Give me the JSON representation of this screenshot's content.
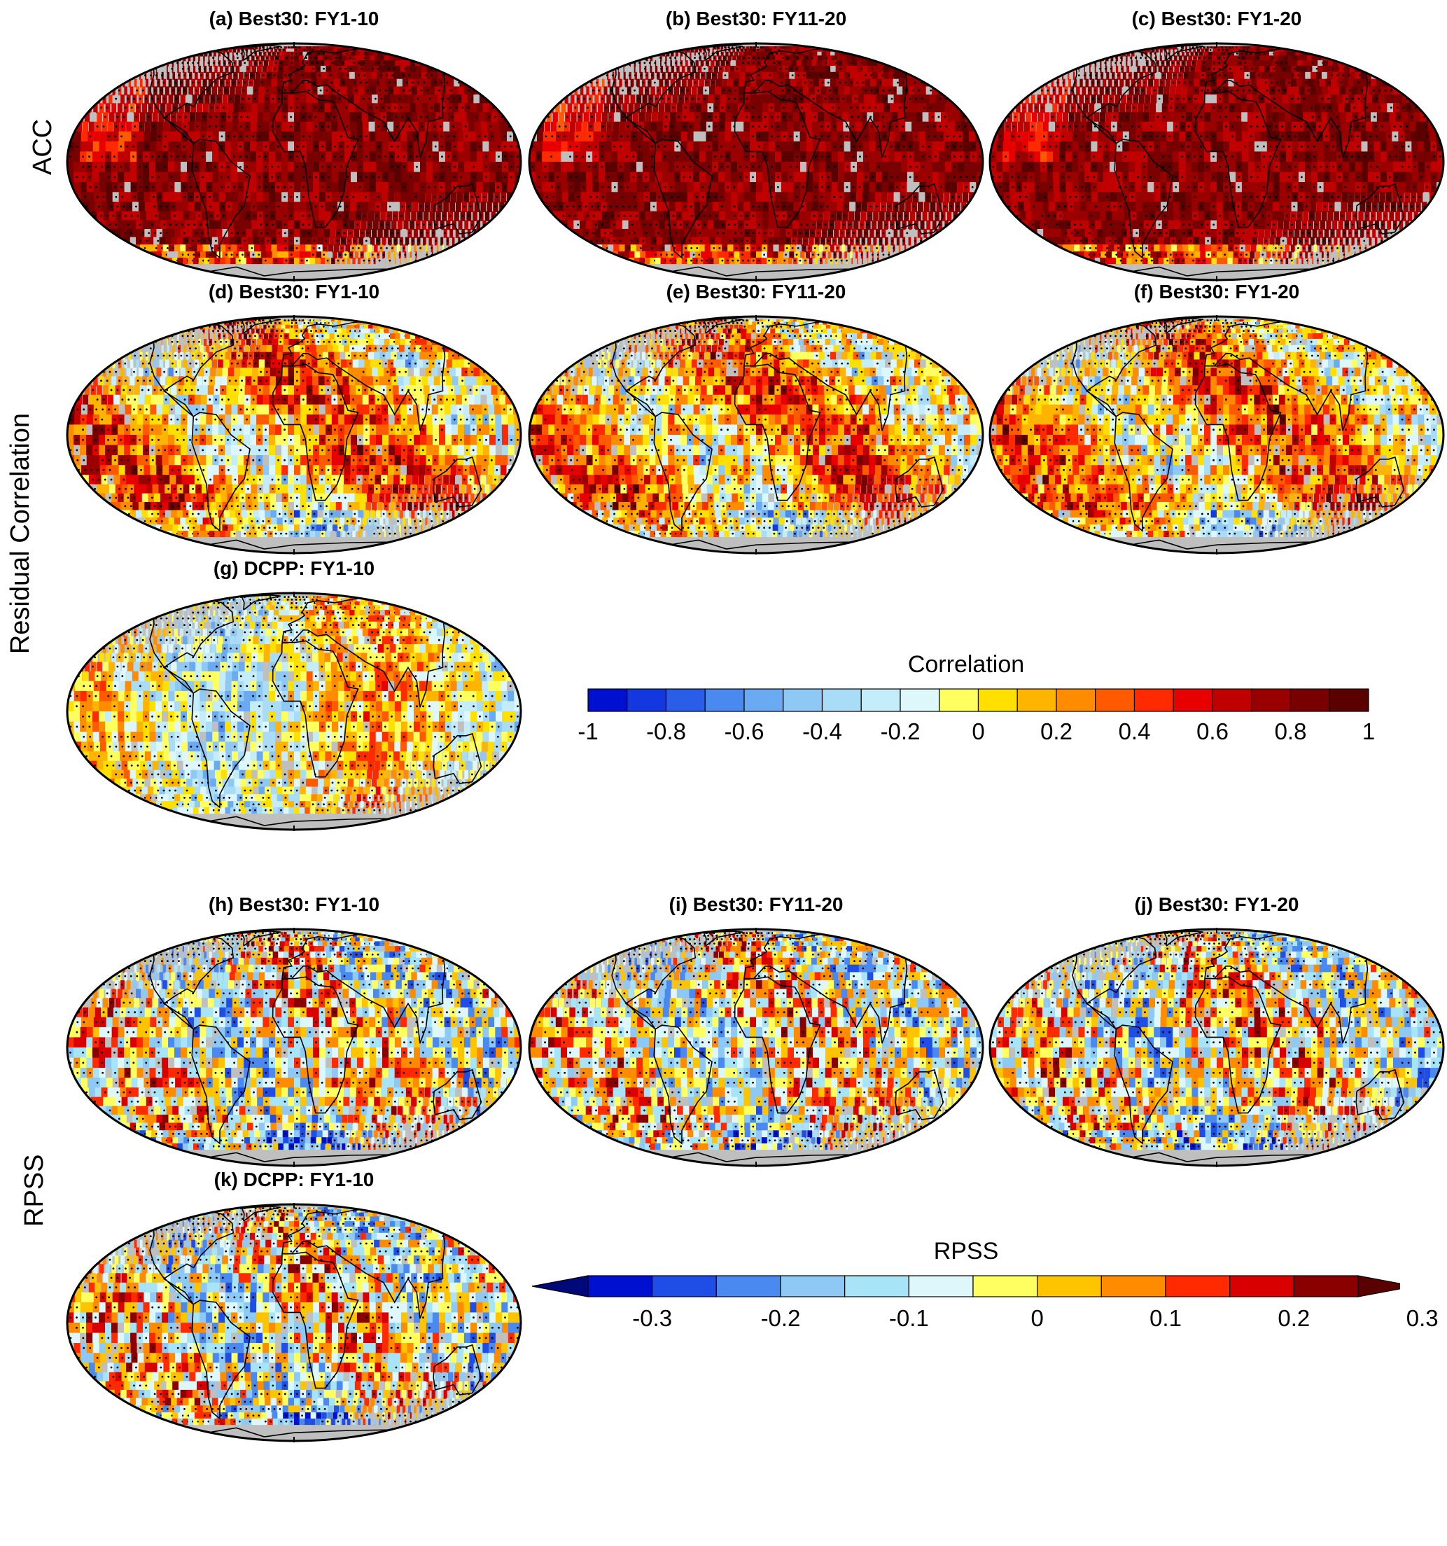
{
  "row_labels": {
    "acc": "ACC",
    "residual": "Residual Correlation",
    "rpss": "RPSS"
  },
  "panels": [
    {
      "id": "a",
      "title": "(a) Best30: FY1-10",
      "style": "high"
    },
    {
      "id": "b",
      "title": "(b) Best30: FY11-20",
      "style": "high"
    },
    {
      "id": "c",
      "title": "(c) Best30: FY1-20",
      "style": "high"
    },
    {
      "id": "d",
      "title": "(d) Best30: FY1-10",
      "style": "mixed"
    },
    {
      "id": "e",
      "title": "(e) Best30: FY11-20",
      "style": "mixed"
    },
    {
      "id": "f",
      "title": "(f) Best30: FY1-20",
      "style": "mixed"
    },
    {
      "id": "g",
      "title": "(g) DCPP: FY1-10",
      "style": "low"
    },
    {
      "id": "h",
      "title": "(h) Best30: FY1-10",
      "style": "rpss"
    },
    {
      "id": "i",
      "title": "(i) Best30: FY11-20",
      "style": "rpss"
    },
    {
      "id": "j",
      "title": "(j) Best30: FY1-20",
      "style": "rpss"
    },
    {
      "id": "k",
      "title": "(k) DCPP: FY1-10",
      "style": "rpss"
    }
  ],
  "colorbar_correlation": {
    "title": "Correlation",
    "tick_labels": [
      "-1",
      "-0.8",
      "-0.6",
      "-0.4",
      "-0.2",
      "0",
      "0.2",
      "0.4",
      "0.6",
      "0.8",
      "1"
    ],
    "colors": [
      "#0010d0",
      "#1438e0",
      "#2a5ee8",
      "#4a8af0",
      "#6aaaf2",
      "#8ec8f5",
      "#a8dcf7",
      "#c4ecf9",
      "#def7fa",
      "#ffff60",
      "#ffe000",
      "#ffb400",
      "#ff8c00",
      "#ff5a00",
      "#ff2a00",
      "#e80000",
      "#c00000",
      "#9a0000",
      "#780000",
      "#5a0000"
    ]
  },
  "colorbar_rpss": {
    "title": "RPSS",
    "tick_labels": [
      "-0.3",
      "-0.2",
      "-0.1",
      "0",
      "0.1",
      "0.2",
      "0.3"
    ],
    "colors": [
      "#0010d0",
      "#1e4ee6",
      "#4a8af0",
      "#8ec8f5",
      "#a8e4f7",
      "#def7fa",
      "#ffff60",
      "#ffc400",
      "#ff8c00",
      "#ff2a00",
      "#d80000",
      "#8a0000"
    ],
    "under_color": "#00087a",
    "over_color": "#5a0000"
  },
  "land_mask_color": "#bfbfbf"
}
